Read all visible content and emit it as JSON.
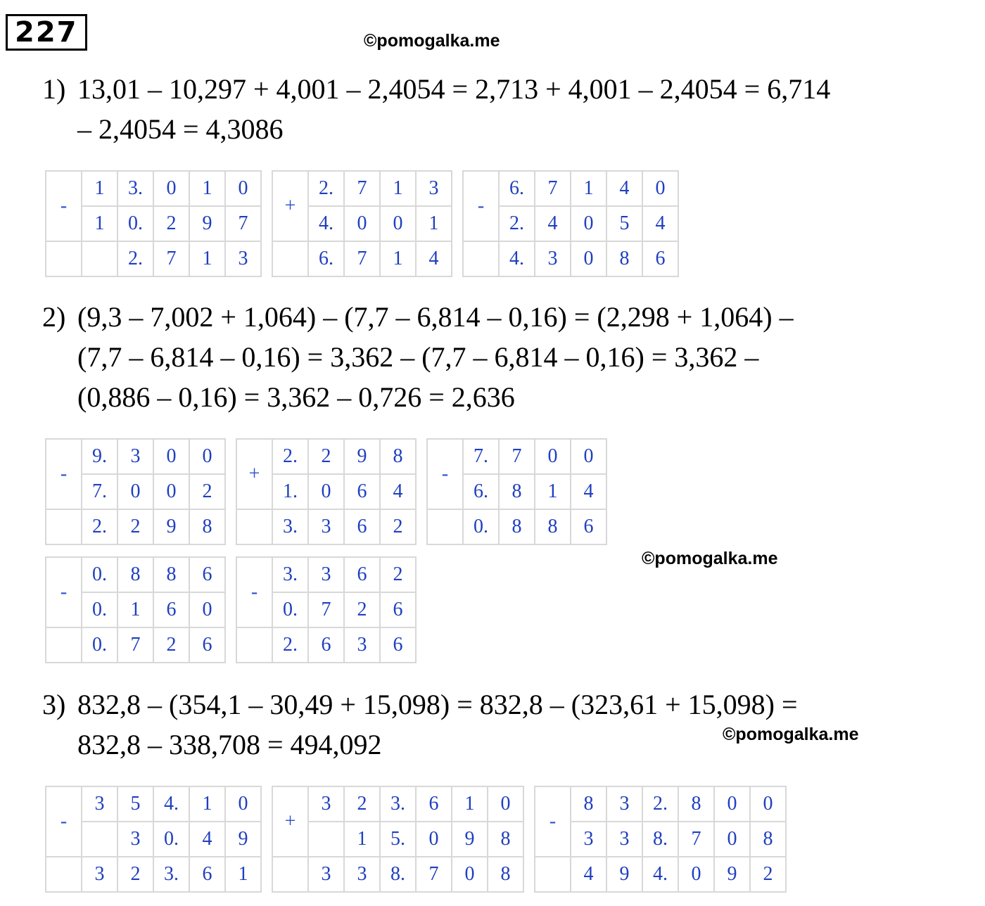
{
  "number": "227",
  "watermarks": [
    "©pomogalka.me",
    "©pomogalka.me",
    "©pomogalka.me"
  ],
  "problems": [
    {
      "label": "1)",
      "lines": [
        "13,01 – 10,297 + 4,001 – 2,4054 = 2,713 + 4,001 – 2,4054 = 6,714",
        "– 2,4054 = 4,3086"
      ],
      "columns": [
        {
          "op": "-",
          "rows": [
            [
              "1",
              "3.",
              "0",
              "1",
              "0"
            ],
            [
              "1",
              "0.",
              "2",
              "9",
              "7"
            ],
            [
              null,
              "2.",
              "7",
              "1",
              "3"
            ]
          ]
        },
        {
          "op": "+",
          "rows": [
            [
              "2.",
              "7",
              "1",
              "3"
            ],
            [
              "4.",
              "0",
              "0",
              "1"
            ],
            [
              "6.",
              "7",
              "1",
              "4"
            ]
          ]
        },
        {
          "op": "-",
          "rows": [
            [
              "6.",
              "7",
              "1",
              "4",
              "0"
            ],
            [
              "2.",
              "4",
              "0",
              "5",
              "4"
            ],
            [
              "4.",
              "3",
              "0",
              "8",
              "6"
            ]
          ]
        }
      ]
    },
    {
      "label": "2)",
      "lines": [
        "(9,3 – 7,002 + 1,064) – (7,7 – 6,814 – 0,16) = (2,298 + 1,064) –",
        "(7,7 – 6,814 – 0,16) = 3,362 – (7,7 – 6,814 – 0,16) = 3,362 –",
        "(0,886 – 0,16) = 3,362 – 0,726 = 2,636"
      ],
      "columns": [
        {
          "op": "-",
          "rows": [
            [
              "9.",
              "3",
              "0",
              "0"
            ],
            [
              "7.",
              "0",
              "0",
              "2"
            ],
            [
              "2.",
              "2",
              "9",
              "8"
            ]
          ]
        },
        {
          "op": "+",
          "rows": [
            [
              "2.",
              "2",
              "9",
              "8"
            ],
            [
              "1.",
              "0",
              "6",
              "4"
            ],
            [
              "3.",
              "3",
              "6",
              "2"
            ]
          ]
        },
        {
          "op": "-",
          "rows": [
            [
              "7.",
              "7",
              "0",
              "0"
            ],
            [
              "6.",
              "8",
              "1",
              "4"
            ],
            [
              "0.",
              "8",
              "8",
              "6"
            ]
          ]
        },
        {
          "op": "-",
          "rows": [
            [
              "0.",
              "8",
              "8",
              "6"
            ],
            [
              "0.",
              "1",
              "6",
              "0"
            ],
            [
              "0.",
              "7",
              "2",
              "6"
            ]
          ]
        },
        {
          "op": "-",
          "rows": [
            [
              "3.",
              "3",
              "6",
              "2"
            ],
            [
              "0.",
              "7",
              "2",
              "6"
            ],
            [
              "2.",
              "6",
              "3",
              "6"
            ]
          ]
        }
      ]
    },
    {
      "label": "3)",
      "lines": [
        "832,8 – (354,1 – 30,49 + 15,098) = 832,8 – (323,61 + 15,098) =",
        "832,8 – 338,708 = 494,092"
      ],
      "columns": [
        {
          "op": "-",
          "rows": [
            [
              "3",
              "5",
              "4.",
              "1",
              "0"
            ],
            [
              null,
              "3",
              "0.",
              "4",
              "9"
            ],
            [
              "3",
              "2",
              "3.",
              "6",
              "1"
            ]
          ]
        },
        {
          "op": "+",
          "rows": [
            [
              "3",
              "2",
              "3.",
              "6",
              "1",
              "0"
            ],
            [
              null,
              "1",
              "5.",
              "0",
              "9",
              "8"
            ],
            [
              "3",
              "3",
              "8.",
              "7",
              "0",
              "8"
            ]
          ]
        },
        {
          "op": "-",
          "rows": [
            [
              "8",
              "3",
              "2.",
              "8",
              "0",
              "0"
            ],
            [
              "3",
              "3",
              "8.",
              "7",
              "0",
              "8"
            ],
            [
              "4",
              "9",
              "4.",
              "0",
              "9",
              "2"
            ]
          ]
        }
      ]
    }
  ]
}
